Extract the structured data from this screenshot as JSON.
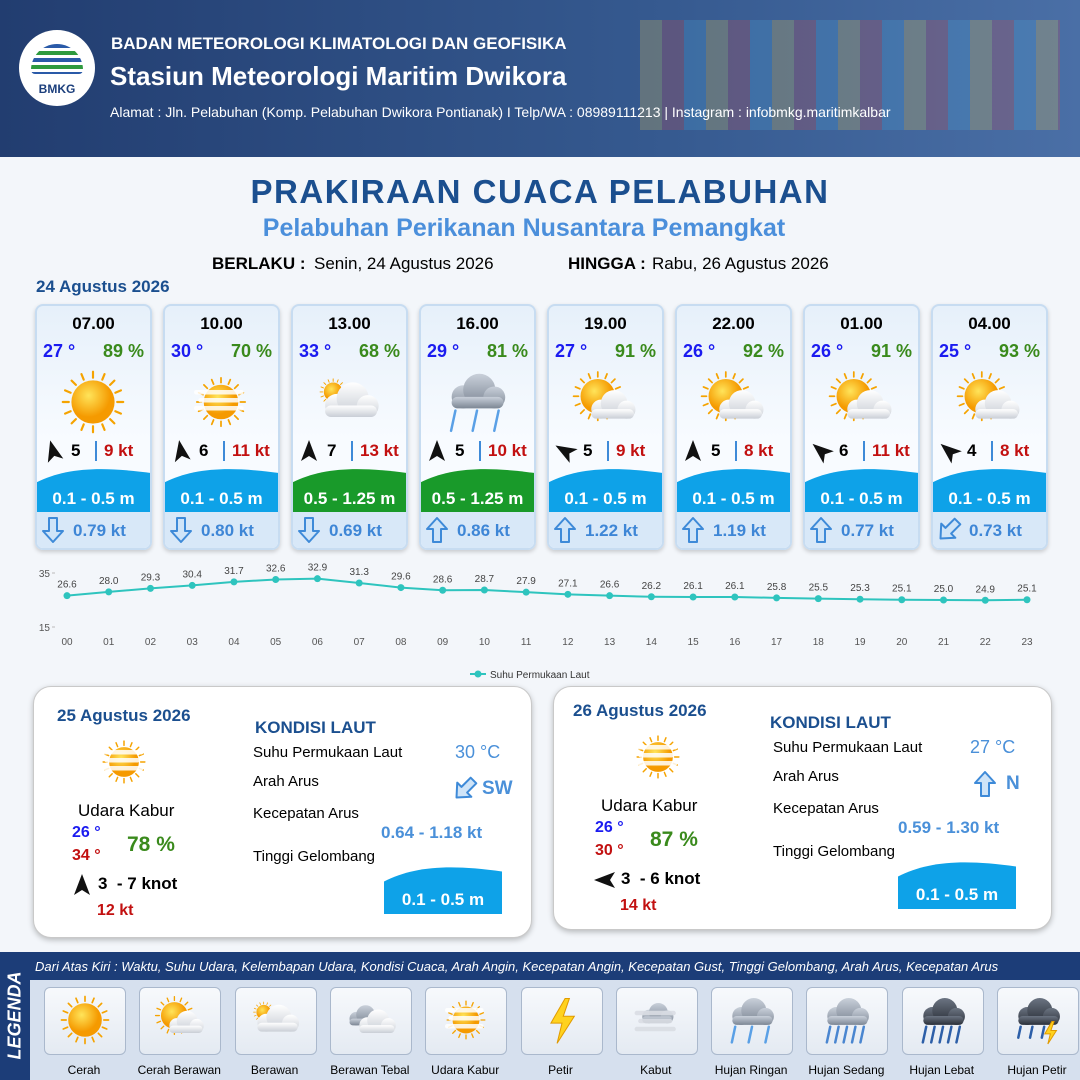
{
  "header": {
    "logo": "BMKG",
    "org": "BADAN METEOROLOGI KLIMATOLOGI DAN GEOFISIKA",
    "station": "Stasiun Meteorologi Maritim Dwikora",
    "address": "Alamat : Jln. Pelabuhan (Komp. Pelabuhan Dwikora Pontianak) I Telp/WA : 08989111213 | Instagram : infobmkg.maritimkalbar"
  },
  "title": "PRAKIRAAN CUACA PELABUHAN",
  "subtitle": "Pelabuhan Perikanan Nusantara Pemangkat",
  "validity": {
    "from_label": "BERLAKU :",
    "from": "Senin, 24 Agustus 2026",
    "to_label": "HINGGA :",
    "to": "Rabu, 26 Agustus 2026"
  },
  "today": {
    "date": "24 Agustus 2026",
    "forecasts": [
      {
        "time": "07.00",
        "temp": "27 °",
        "humidity": "89 %",
        "condition": "Cerah",
        "wind_deg": -15,
        "wind": "5",
        "gust": "9 kt",
        "wave": "0.1 - 0.5 m",
        "wave_color": "#0ea2e8",
        "current_deg": 180,
        "current": "0.79 kt"
      },
      {
        "time": "10.00",
        "temp": "30 °",
        "humidity": "70 %",
        "condition": "Udara Kabur",
        "wind_deg": -10,
        "wind": "6",
        "gust": "11 kt",
        "wave": "0.1 - 0.5 m",
        "wave_color": "#0ea2e8",
        "current_deg": 180,
        "current": "0.80 kt"
      },
      {
        "time": "13.00",
        "temp": "33 °",
        "humidity": "68 %",
        "condition": "Berawan",
        "wind_deg": 0,
        "wind": "7",
        "gust": "13 kt",
        "wave": "0.5 - 1.25 m",
        "wave_color": "#199a2a",
        "current_deg": 180,
        "current": "0.69 kt"
      },
      {
        "time": "16.00",
        "temp": "29 °",
        "humidity": "81 %",
        "condition": "Hujan Ringan",
        "wind_deg": 0,
        "wind": "5",
        "gust": "10 kt",
        "wave": "0.5 - 1.25 m",
        "wave_color": "#199a2a",
        "current_deg": 0,
        "current": "0.86 kt"
      },
      {
        "time": "19.00",
        "temp": "27 °",
        "humidity": "91 %",
        "condition": "Cerah Berawan",
        "wind_deg": -60,
        "wind": "5",
        "gust": "9 kt",
        "wave": "0.1 - 0.5 m",
        "wave_color": "#0ea2e8",
        "current_deg": 0,
        "current": "1.22 kt"
      },
      {
        "time": "22.00",
        "temp": "26 °",
        "humidity": "92 %",
        "condition": "Cerah Berawan",
        "wind_deg": 0,
        "wind": "5",
        "gust": "8 kt",
        "wave": "0.1 - 0.5 m",
        "wave_color": "#0ea2e8",
        "current_deg": 0,
        "current": "1.19 kt"
      },
      {
        "time": "01.00",
        "temp": "26 °",
        "humidity": "91 %",
        "condition": "Cerah Berawan",
        "wind_deg": -50,
        "wind": "6",
        "gust": "11 kt",
        "wave": "0.1 - 0.5 m",
        "wave_color": "#0ea2e8",
        "current_deg": 0,
        "current": "0.77 kt"
      },
      {
        "time": "04.00",
        "temp": "25 °",
        "humidity": "93 %",
        "condition": "Cerah Berawan",
        "wind_deg": -50,
        "wind": "4",
        "gust": "8 kt",
        "wave": "0.1 - 0.5 m",
        "wave_color": "#0ea2e8",
        "current_deg": 225,
        "current": "0.73 kt"
      }
    ]
  },
  "chart_data": {
    "type": "line",
    "categories": [
      "00",
      "01",
      "02",
      "03",
      "04",
      "05",
      "06",
      "07",
      "08",
      "09",
      "10",
      "11",
      "12",
      "13",
      "14",
      "15",
      "16",
      "17",
      "18",
      "19",
      "20",
      "21",
      "22",
      "23"
    ],
    "series": [
      {
        "name": "Suhu Permukaan Laut",
        "color": "#2ec4be",
        "values": [
          26.6,
          28.0,
          29.3,
          30.4,
          31.7,
          32.6,
          32.9,
          31.3,
          29.6,
          28.6,
          28.7,
          27.9,
          27.1,
          26.6,
          26.2,
          26.1,
          26.1,
          25.8,
          25.5,
          25.3,
          25.1,
          25.0,
          24.9,
          25.1
        ],
        "value_labels": [
          "26.6",
          "28.0",
          "29.3",
          "30.4",
          "31.7",
          "32.6",
          "32.9",
          "31.3",
          "29.6",
          "28.6",
          "28.7",
          "27.9",
          "27.1",
          "26.6",
          "26.2",
          "26.1",
          "26.1",
          "25.8",
          "25.5",
          "25.3",
          "25.1",
          "25.0",
          "24.9",
          "25.1"
        ]
      }
    ],
    "ylim": [
      15,
      35
    ],
    "yticks": [
      15,
      35
    ],
    "legend": "bottom"
  },
  "outlook": [
    {
      "date": "25 Agustus 2026",
      "condition": "Udara Kabur",
      "temp_min": "26 °",
      "temp_max": "34 °",
      "humidity": "78 %",
      "wind_deg": 0,
      "wind": "3  - 7 knot",
      "gust": "12 kt",
      "sea_heading": "KONDISI LAUT",
      "sst_label": "Suhu Permukaan Laut",
      "sst": "30 °C",
      "current_dir_label": "Arah Arus",
      "current_deg": 225,
      "current_dir": "SW",
      "current_speed_label": "Kecepatan Arus",
      "current_speed": "0.64 - 1.18 kt",
      "wave_label": "Tinggi Gelombang",
      "wave": "0.1 - 0.5 m",
      "wave_color": "#0ea2e8"
    },
    {
      "date": "26 Agustus 2026",
      "condition": "Udara Kabur",
      "temp_min": "26 °",
      "temp_max": "30 °",
      "humidity": "87 %",
      "wind_deg": 270,
      "wind": "3  - 6 knot",
      "gust": "14 kt",
      "sea_heading": "KONDISI LAUT",
      "sst_label": "Suhu Permukaan Laut",
      "sst": "27 °C",
      "current_dir_label": "Arah Arus",
      "current_deg": 0,
      "current_dir": "N",
      "current_speed_label": "Kecepatan Arus",
      "current_speed": "0.59 - 1.30 kt",
      "wave_label": "Tinggi Gelombang",
      "wave": "0.1 - 0.5 m",
      "wave_color": "#0ea2e8"
    }
  ],
  "legend": {
    "title": "LEGENDA",
    "description": "Dari Atas Kiri : Waktu, Suhu Udara, Kelembapan Udara, Kondisi Cuaca, Arah Angin, Kecepatan Angin, Kecepatan Gust, Tinggi Gelombang, Arah Arus, Kecepatan Arus",
    "items": [
      "Cerah",
      "Cerah Berawan",
      "Berawan",
      "Berawan Tebal",
      "Udara Kabur",
      "Petir",
      "Kabut",
      "Hujan Ringan",
      "Hujan Sedang",
      "Hujan Lebat",
      "Hujan Petir"
    ]
  }
}
